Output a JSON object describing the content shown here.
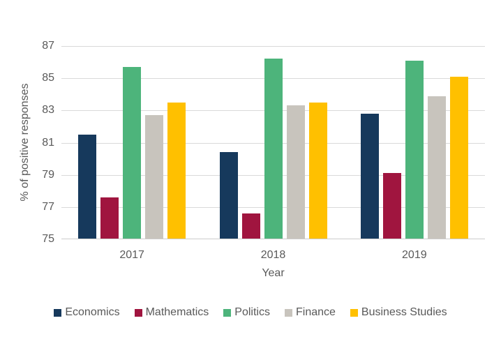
{
  "chart_data": {
    "type": "bar",
    "title": "",
    "xlabel": "Year",
    "ylabel": "% of positive responses",
    "categories": [
      "2017",
      "2018",
      "2019"
    ],
    "series": [
      {
        "name": "Economics",
        "color": "#16395C",
        "values": [
          81.5,
          80.4,
          82.8
        ]
      },
      {
        "name": "Mathematics",
        "color": "#A0153F",
        "values": [
          77.6,
          76.6,
          79.1
        ]
      },
      {
        "name": "Politics",
        "color": "#4DB47B",
        "values": [
          85.7,
          86.2,
          86.1
        ]
      },
      {
        "name": "Finance",
        "color": "#C8C4BD",
        "values": [
          82.7,
          83.3,
          83.9
        ]
      },
      {
        "name": "Business Studies",
        "color": "#FFC000",
        "values": [
          83.5,
          83.5,
          85.1
        ]
      }
    ],
    "yticks": [
      75,
      77,
      79,
      81,
      83,
      85,
      87
    ],
    "ylim": [
      75,
      87
    ],
    "grid": true,
    "legend_position": "bottom"
  },
  "colors": {
    "background": "#FFFFFF",
    "gridline": "#D9D9D9",
    "axis_line": "#CCCCCC",
    "axis_text": "#595959",
    "legend_text": "#595959"
  }
}
